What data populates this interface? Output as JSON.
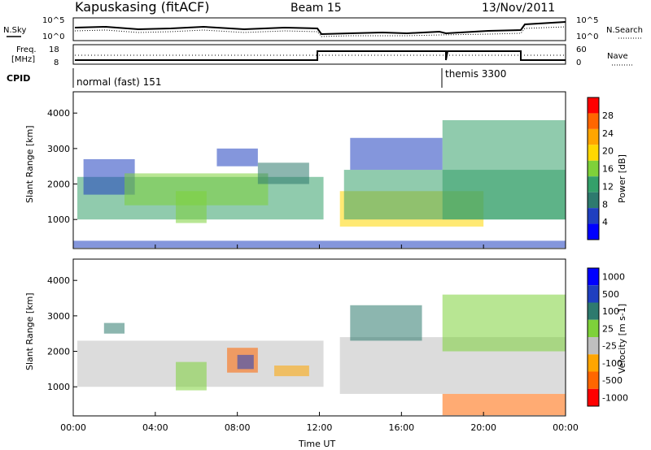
{
  "header": {
    "station": "Kapuskasing (fitACF)",
    "beam": "Beam 15",
    "date": "13/Nov/2011"
  },
  "summary_panel": {
    "nsky_label": "N.Sky",
    "nsky_ticks": [
      "10^5",
      "10^0"
    ],
    "nsearch_label": "N.Search",
    "nsearch_ticks": [
      "10^5",
      "10^0"
    ],
    "freq_label": "Freq.",
    "freq_unit": "[MHz]",
    "freq_ticks": [
      "18",
      "8"
    ],
    "nave_label": "Nave",
    "nave_ticks": [
      "60",
      "0"
    ],
    "cpid_label": "CPID",
    "cpid_segments": [
      {
        "label": "normal (fast) 151",
        "start_hour": 0
      },
      {
        "label": "themis 3300",
        "start_hour": 18.1
      }
    ]
  },
  "colors": {
    "power": [
      "#0000ff",
      "#1f3fc0",
      "#2e7a6e",
      "#34a06a",
      "#7ed13a",
      "#ffd700",
      "#ffa500",
      "#ff6600",
      "#ff0000"
    ],
    "velocity": [
      "#0000ff",
      "#1f3fc0",
      "#2e7a6e",
      "#7ed13a",
      "#bfbfbf",
      "#ffa500",
      "#ff6600",
      "#ff0000"
    ]
  },
  "chart_data": [
    {
      "type": "heatmap",
      "name": "power",
      "ylabel": "Slant Range [km]",
      "ylim": [
        180,
        4600
      ],
      "yticks": [
        1000,
        2000,
        3000,
        4000
      ],
      "colorbar_label": "Power [dB]",
      "colorbar_ticks": [
        "4",
        "8",
        "12",
        "16",
        "20",
        "24",
        "28"
      ],
      "xlim": [
        0,
        24
      ],
      "regions": [
        {
          "x0": 0.2,
          "x1": 12.2,
          "y0": 1000,
          "y1": 2200,
          "level": 3
        },
        {
          "x0": 0.5,
          "x1": 3.0,
          "y0": 1700,
          "y1": 2700,
          "level": 1
        },
        {
          "x0": 2.5,
          "x1": 9.5,
          "y0": 1400,
          "y1": 2300,
          "level": 4
        },
        {
          "x0": 5.0,
          "x1": 6.5,
          "y0": 900,
          "y1": 1800,
          "level": 4
        },
        {
          "x0": 7.0,
          "x1": 9.0,
          "y0": 2500,
          "y1": 3000,
          "level": 1
        },
        {
          "x0": 9.0,
          "x1": 11.5,
          "y0": 2000,
          "y1": 2600,
          "level": 2
        },
        {
          "x0": 13.0,
          "x1": 20.0,
          "y0": 800,
          "y1": 1800,
          "level": 5
        },
        {
          "x0": 13.2,
          "x1": 24.0,
          "y0": 1000,
          "y1": 2400,
          "level": 3
        },
        {
          "x0": 13.5,
          "x1": 18.0,
          "y0": 2400,
          "y1": 3300,
          "level": 1
        },
        {
          "x0": 18.0,
          "x1": 24.0,
          "y0": 1000,
          "y1": 3800,
          "level": 3
        },
        {
          "x0": 0.0,
          "x1": 24.0,
          "y0": 200,
          "y1": 400,
          "level": 1
        }
      ]
    },
    {
      "type": "heatmap",
      "name": "velocity",
      "ylabel": "Slant Range [km]",
      "ylim": [
        180,
        4600
      ],
      "yticks": [
        1000,
        2000,
        3000,
        4000
      ],
      "colorbar_label": "Velocity [m s-1]",
      "colorbar_ticks": [
        "1000",
        "500",
        "100",
        "25",
        "-25",
        "-100",
        "-500",
        "-1000"
      ],
      "xlabel": "Time UT",
      "xticks": [
        "00:00",
        "04:00",
        "08:00",
        "12:00",
        "16:00",
        "20:00",
        "00:00"
      ],
      "xlim": [
        0,
        24
      ],
      "regions": [
        {
          "x0": 0.2,
          "x1": 12.2,
          "y0": 1000,
          "y1": 2300,
          "level": 4
        },
        {
          "x0": 5.0,
          "x1": 6.5,
          "y0": 900,
          "y1": 1700,
          "level": 3
        },
        {
          "x0": 7.5,
          "x1": 9.0,
          "y0": 1400,
          "y1": 2100,
          "level": 6
        },
        {
          "x0": 8.0,
          "x1": 8.8,
          "y0": 1500,
          "y1": 1900,
          "level": 1
        },
        {
          "x0": 9.8,
          "x1": 11.5,
          "y0": 1300,
          "y1": 1600,
          "level": 5
        },
        {
          "x0": 1.5,
          "x1": 2.5,
          "y0": 2500,
          "y1": 2800,
          "level": 2
        },
        {
          "x0": 13.0,
          "x1": 24.0,
          "y0": 800,
          "y1": 2400,
          "level": 4
        },
        {
          "x0": 13.5,
          "x1": 17.0,
          "y0": 2300,
          "y1": 3300,
          "level": 2
        },
        {
          "x0": 18.0,
          "x1": 24.0,
          "y0": 2000,
          "y1": 3600,
          "level": 3
        },
        {
          "x0": 18.0,
          "x1": 24.0,
          "y0": 200,
          "y1": 800,
          "level": 6
        }
      ]
    }
  ]
}
